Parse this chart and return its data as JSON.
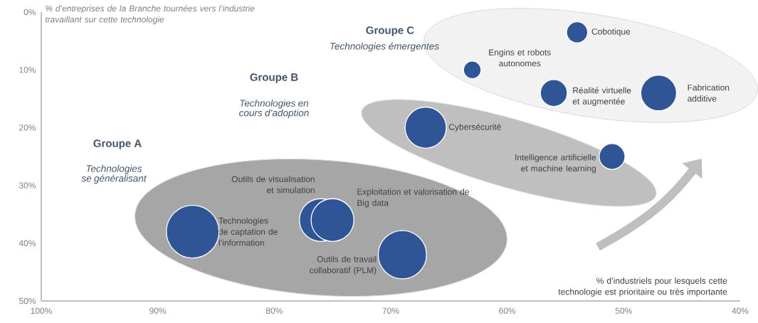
{
  "chart_data": {
    "type": "bubble",
    "xlabel": "% d’industriels pour lesquels cette technologie est prioritaire ou très importante",
    "ylabel": "% d’entreprises de la Branche tournées vers l’industrie travaillant sur cette technologie",
    "annotations": [
      "Groupe A",
      "Technologies se généralisant",
      "Groupe B",
      "Technologies en cours d’adoption",
      "Groupe C",
      "Technologies émergentes"
    ],
    "xlim": [
      100,
      40
    ],
    "ylim": [
      50,
      0
    ],
    "xticks": [
      {
        "value": 100,
        "label": "100%"
      },
      {
        "value": 90,
        "label": "90%"
      },
      {
        "value": 80,
        "label": "80%"
      },
      {
        "value": 70,
        "label": "70%"
      },
      {
        "value": 60,
        "label": "60%"
      },
      {
        "value": 50,
        "label": "50%"
      },
      {
        "value": 40,
        "label": "40%"
      }
    ],
    "yticks": [
      {
        "value": 0,
        "label": "0%"
      },
      {
        "value": 10,
        "label": "10%"
      },
      {
        "value": 20,
        "label": "20%"
      },
      {
        "value": 30,
        "label": "30%"
      },
      {
        "value": 40,
        "label": "40%"
      },
      {
        "value": 50,
        "label": "50%"
      }
    ],
    "series": [
      {
        "name": "Technologies de captation de l’information",
        "color": "#2f5597",
        "x": [
          87
        ],
        "values": [
          38
        ],
        "sizes": [
          1
        ]
      },
      {
        "name": "Outils de visualisation et simulation",
        "color": "#2f5597",
        "x": [
          76
        ],
        "values": [
          36
        ],
        "sizes": [
          0.66
        ]
      },
      {
        "name": "Exploitation et valorisation de Big data",
        "color": "#2f5597",
        "x": [
          75
        ],
        "values": [
          36
        ],
        "sizes": [
          0.66
        ]
      },
      {
        "name": "Outils de travail collaboratif (PLM)",
        "color": "#2f5597",
        "x": [
          69
        ],
        "values": [
          42
        ],
        "sizes": [
          0.84
        ]
      },
      {
        "name": "Cybersécurité",
        "color": "#2f5597",
        "x": [
          67
        ],
        "values": [
          20
        ],
        "sizes": [
          0.61
        ]
      },
      {
        "name": "Intelligence artificielle et machine learning",
        "color": "#2f5597",
        "x": [
          51
        ],
        "values": [
          25
        ],
        "sizes": [
          0.24
        ]
      },
      {
        "name": "Cobotique",
        "color": "#2f5597",
        "x": [
          54
        ],
        "values": [
          3.5
        ],
        "sizes": [
          0.16
        ]
      },
      {
        "name": "Engins et robots autonomes",
        "color": "#2f5597",
        "x": [
          63
        ],
        "values": [
          10
        ],
        "sizes": [
          0.11
        ]
      },
      {
        "name": "Réalité virtuelle et augmentée",
        "color": "#2f5597",
        "x": [
          56
        ],
        "values": [
          14
        ],
        "sizes": [
          0.26
        ]
      },
      {
        "name": "Fabrication additive",
        "color": "#2f5597",
        "x": [
          47
        ],
        "values": [
          14
        ],
        "sizes": [
          0.46
        ]
      }
    ]
  }
}
